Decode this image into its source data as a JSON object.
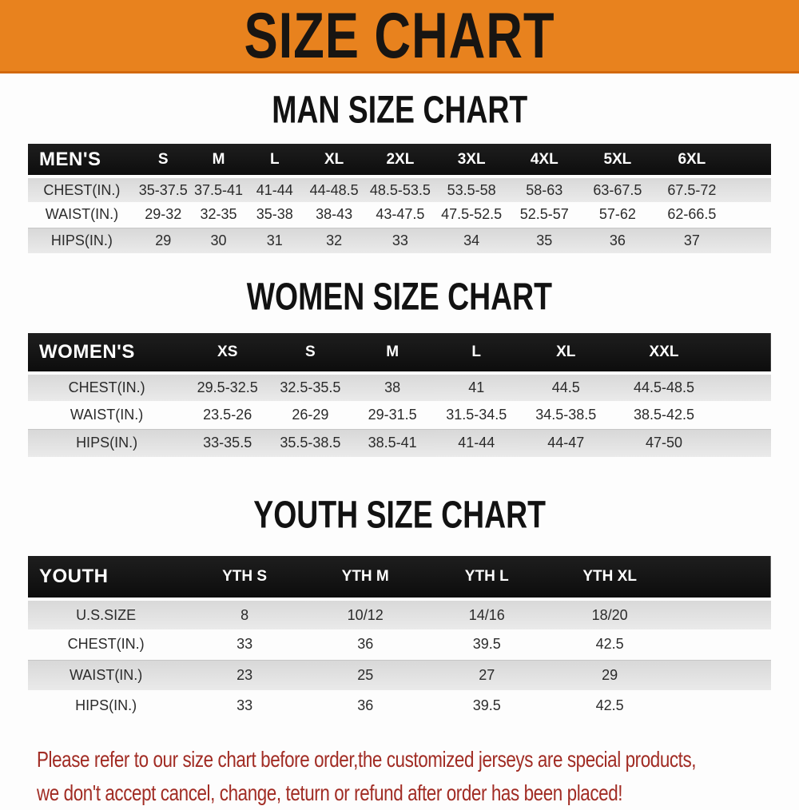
{
  "banner": {
    "title": "SIZE CHART"
  },
  "colors": {
    "banner_bg": "#E8821E",
    "banner_border": "#D2690F",
    "header_bar": "#151515",
    "header_text": "#FFFFFF",
    "row_alt": "#DCDCDC",
    "footer_text": "#A12C24"
  },
  "sections": [
    {
      "heading": "MAN SIZE CHART",
      "header_label": "MEN'S",
      "columns": [
        "S",
        "M",
        "L",
        "XL",
        "2XL",
        "3XL",
        "4XL",
        "5XL",
        "6XL"
      ],
      "rows": [
        {
          "label": "CHEST(IN.)",
          "values": [
            "35-37.5",
            "37.5-41",
            "41-44",
            "44-48.5",
            "48.5-53.5",
            "53.5-58",
            "58-63",
            "63-67.5",
            "67.5-72"
          ]
        },
        {
          "label": "WAIST(IN.)",
          "values": [
            "29-32",
            "32-35",
            "35-38",
            "38-43",
            "43-47.5",
            "47.5-52.5",
            "52.5-57",
            "57-62",
            "62-66.5"
          ]
        },
        {
          "label": "HIPS(IN.)",
          "values": [
            "29",
            "30",
            "31",
            "32",
            "33",
            "34",
            "35",
            "36",
            "37"
          ]
        }
      ]
    },
    {
      "heading": "WOMEN SIZE CHART",
      "header_label": "WOMEN'S",
      "columns": [
        "XS",
        "S",
        "M",
        "L",
        "XL",
        "XXL"
      ],
      "rows": [
        {
          "label": "CHEST(IN.)",
          "values": [
            "29.5-32.5",
            "32.5-35.5",
            "38",
            "41",
            "44.5",
            "44.5-48.5"
          ]
        },
        {
          "label": "WAIST(IN.)",
          "values": [
            "23.5-26",
            "26-29",
            "29-31.5",
            "31.5-34.5",
            "34.5-38.5",
            "38.5-42.5"
          ]
        },
        {
          "label": "HIPS(IN.)",
          "values": [
            "33-35.5",
            "35.5-38.5",
            "38.5-41",
            "41-44",
            "44-47",
            "47-50"
          ]
        }
      ]
    },
    {
      "heading": "YOUTH SIZE CHART",
      "header_label": "YOUTH",
      "columns": [
        "YTH S",
        "YTH M",
        "YTH L",
        "YTH XL"
      ],
      "rows": [
        {
          "label": "U.S.SIZE",
          "values": [
            "8",
            "10/12",
            "14/16",
            "18/20"
          ]
        },
        {
          "label": "CHEST(IN.)",
          "values": [
            "33",
            "36",
            "39.5",
            "42.5"
          ]
        },
        {
          "label": "WAIST(IN.)",
          "values": [
            "23",
            "25",
            "27",
            "29"
          ]
        },
        {
          "label": "HIPS(IN.)",
          "values": [
            "33",
            "36",
            "39.5",
            "42.5"
          ]
        }
      ]
    }
  ],
  "footer": {
    "line1": "Please refer to our size chart before order,the customized jerseys are special products,",
    "line2": "we don't accept cancel, change, teturn or refund after order has been placed!"
  }
}
